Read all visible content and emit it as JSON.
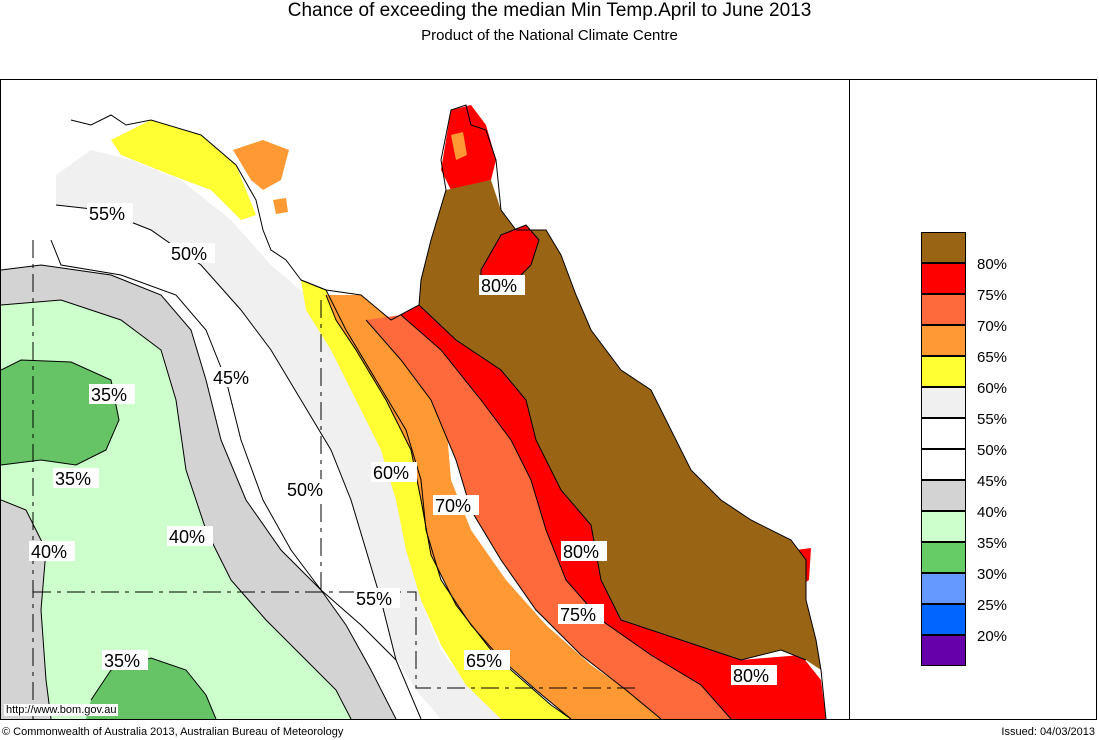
{
  "header": {
    "title": "Chance of exceeding the median Min Temp.April to June 2013",
    "subtitle": "Product of the National Climate Centre"
  },
  "map_labels": [
    {
      "text": "55%"
    },
    {
      "text": "50%"
    },
    {
      "text": "45%"
    },
    {
      "text": "35%"
    },
    {
      "text": "35%"
    },
    {
      "text": "40%"
    },
    {
      "text": "40%"
    },
    {
      "text": "35%"
    },
    {
      "text": "50%"
    },
    {
      "text": "60%"
    },
    {
      "text": "70%"
    },
    {
      "text": "80%"
    },
    {
      "text": "80%"
    },
    {
      "text": "75%"
    },
    {
      "text": "65%"
    },
    {
      "text": "55%"
    },
    {
      "text": "80%"
    }
  ],
  "legend": [
    {
      "label": "80%",
      "color": "#996515"
    },
    {
      "label": "75%",
      "color": "#ff0000"
    },
    {
      "label": "70%",
      "color": "#ff6a3d"
    },
    {
      "label": "65%",
      "color": "#ff9933"
    },
    {
      "label": "60%",
      "color": "#ffff33"
    },
    {
      "label": "55%",
      "color": "#f0f0f0"
    },
    {
      "label": "50%",
      "color": "#ffffff"
    },
    {
      "label": "45%",
      "color": "#ffffff"
    },
    {
      "label": "40%",
      "color": "#d3d3d3"
    },
    {
      "label": "35%",
      "color": "#ccffcc"
    },
    {
      "label": "30%",
      "color": "#66cc66"
    },
    {
      "label": "25%",
      "color": "#6699ff"
    },
    {
      "label": "20%",
      "color": "#0066ff"
    },
    {
      "label": "",
      "color": "#6600aa"
    }
  ],
  "footer": {
    "url": "http://www.bom.gov.au",
    "copyright": "© Commonwealth of Australia 2013, Australian Bureau of Meteorology",
    "issued": "Issued: 04/03/2013"
  }
}
